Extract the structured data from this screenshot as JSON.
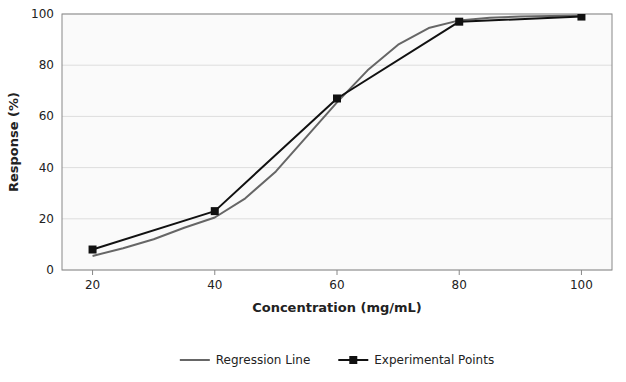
{
  "chart_data": {
    "type": "line",
    "xlabel": "Concentration (mg/mL)",
    "ylabel": "Response (%)",
    "series": [
      {
        "name": "Regression Line",
        "color": "#666666",
        "x": [
          20,
          25,
          30,
          35,
          40,
          45,
          50,
          55,
          60,
          65,
          70,
          75,
          80,
          85,
          90,
          95,
          100
        ],
        "values": [
          5.5,
          8.5,
          12.0,
          16.5,
          20.5,
          28.0,
          38.5,
          52.0,
          65.5,
          78.0,
          88.0,
          94.5,
          97.5,
          98.5,
          99.0,
          99.2,
          99.4
        ]
      },
      {
        "name": "Experimental Points",
        "color": "#111111",
        "marker": "square",
        "x": [
          20,
          40,
          60,
          80,
          100
        ],
        "values": [
          8,
          23,
          67,
          97,
          99
        ]
      }
    ],
    "xlim": [
      15,
      105
    ],
    "ylim": [
      0,
      100
    ],
    "xticks": [
      20,
      40,
      60,
      80,
      100
    ],
    "yticks": [
      0,
      20,
      40,
      60,
      80,
      100
    ],
    "grid": "y",
    "legend": "bottom"
  }
}
